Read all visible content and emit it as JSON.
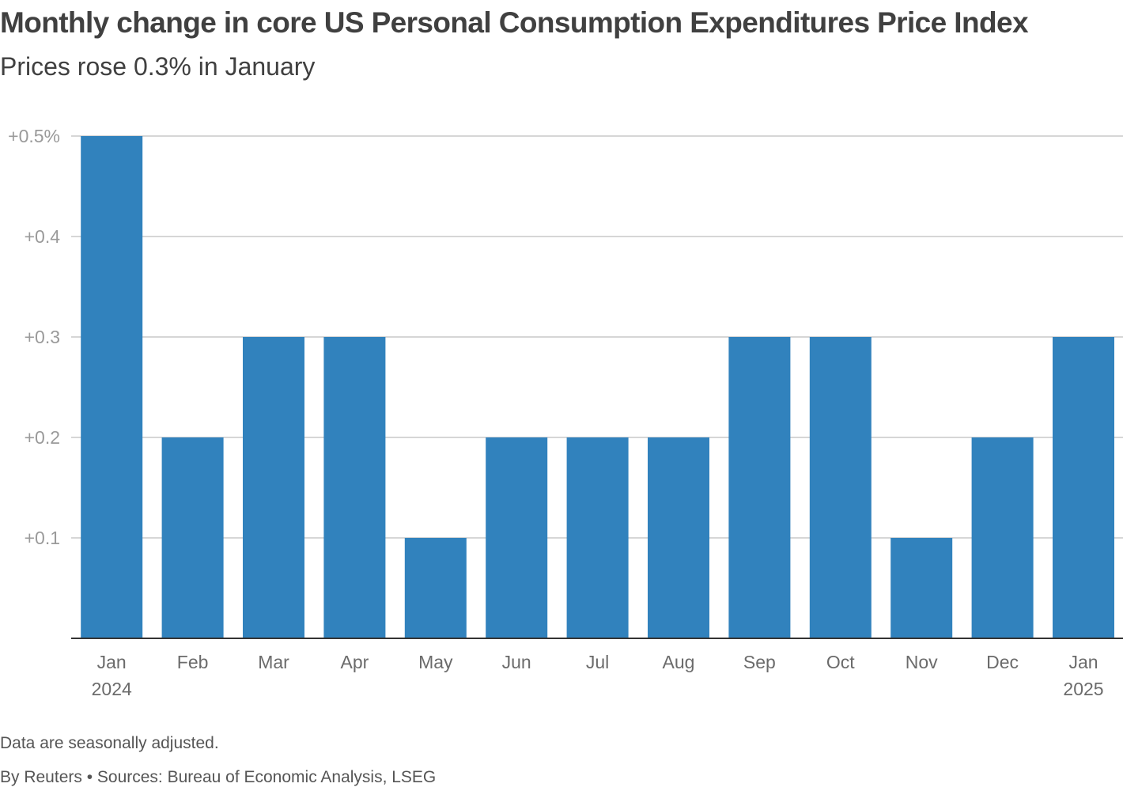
{
  "header": {
    "title": "Monthly change in core US Personal Consumption Expenditures Price Index",
    "subtitle": "Prices rose 0.3% in January"
  },
  "footer": {
    "note": "Data are seasonally adjusted.",
    "source": "By Reuters • Sources: Bureau of Economic Analysis, LSEG"
  },
  "colors": {
    "bar": "#3182bd",
    "grid": "#c8c8c8",
    "axis": "#333333"
  },
  "chart_data": {
    "type": "bar",
    "title": "Monthly change in core US Personal Consumption Expenditures Price Index",
    "subtitle": "Prices rose 0.3% in January",
    "xlabel": "",
    "ylabel": "",
    "ylim": [
      0,
      0.5
    ],
    "yticks": [
      0.1,
      0.2,
      0.3,
      0.4,
      0.5
    ],
    "ytick_labels": [
      "+0.1",
      "+0.2",
      "+0.3",
      "+0.4",
      "+0.5%"
    ],
    "grid": true,
    "categories": [
      {
        "label": "Jan",
        "year": "2024"
      },
      {
        "label": "Feb",
        "year": ""
      },
      {
        "label": "Mar",
        "year": ""
      },
      {
        "label": "Apr",
        "year": ""
      },
      {
        "label": "May",
        "year": ""
      },
      {
        "label": "Jun",
        "year": ""
      },
      {
        "label": "Jul",
        "year": ""
      },
      {
        "label": "Aug",
        "year": ""
      },
      {
        "label": "Sep",
        "year": ""
      },
      {
        "label": "Oct",
        "year": ""
      },
      {
        "label": "Nov",
        "year": ""
      },
      {
        "label": "Dec",
        "year": ""
      },
      {
        "label": "Jan",
        "year": "2025"
      }
    ],
    "values": [
      0.5,
      0.2,
      0.3,
      0.3,
      0.1,
      0.2,
      0.2,
      0.2,
      0.3,
      0.3,
      0.1,
      0.2,
      0.3
    ]
  }
}
